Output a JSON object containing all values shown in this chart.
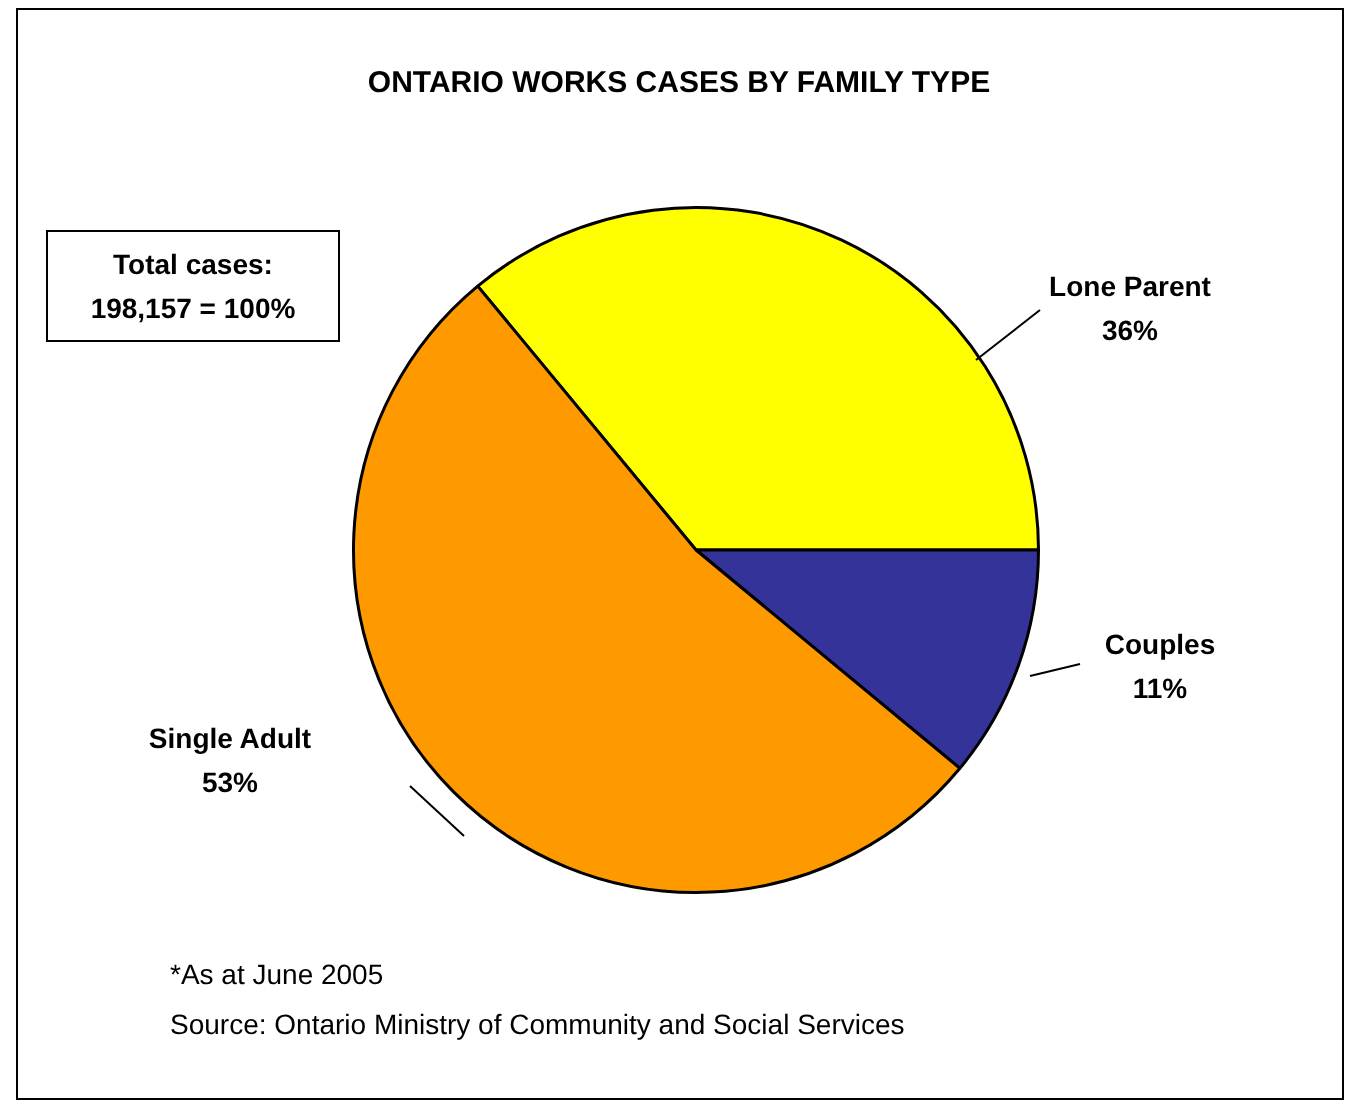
{
  "chart_data": {
    "type": "pie",
    "title": "ONTARIO WORKS CASES BY FAMILY TYPE",
    "categories": [
      "Lone Parent",
      "Couples",
      "Single Adult"
    ],
    "values": [
      36,
      11,
      53
    ],
    "value_labels": [
      "36%",
      "11%",
      "53%"
    ],
    "colors": [
      "#ffff00",
      "#333399",
      "#ff9900"
    ],
    "legend": false,
    "annotations": [
      "Total cases:\n198,157 = 100%",
      "*As at June 2005",
      "Source: Ontario Ministry of Community and Social Services"
    ]
  }
}
